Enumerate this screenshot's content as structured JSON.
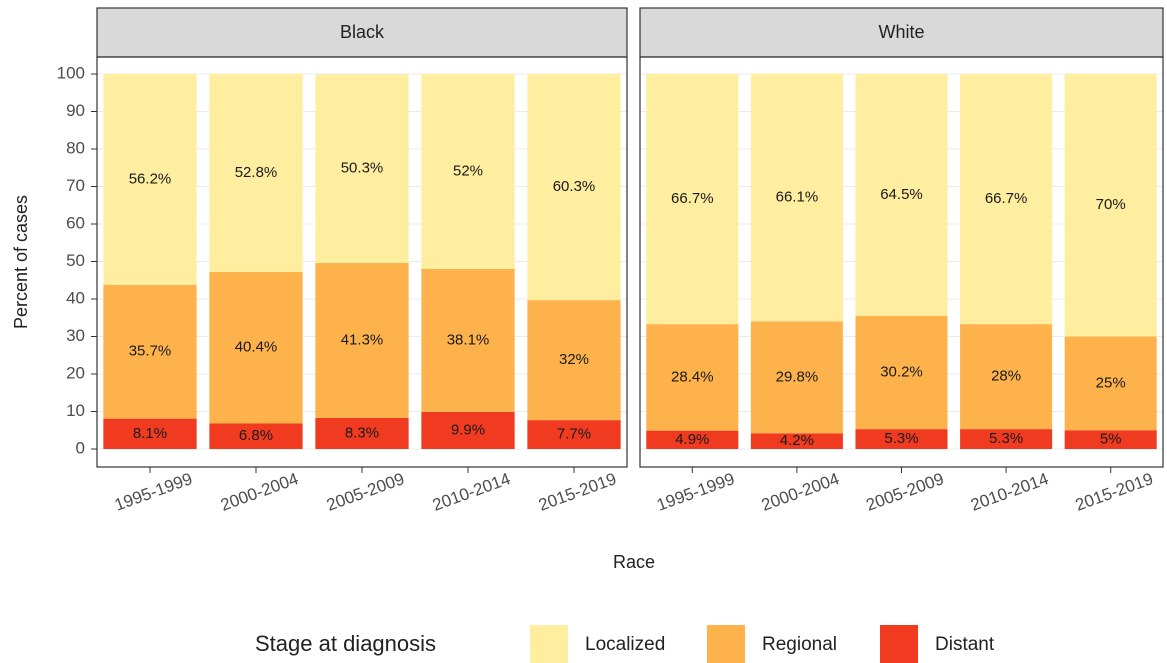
{
  "chart_data": {
    "type": "bar",
    "stacked": true,
    "y_label": "Percent of cases",
    "x_label": "Race",
    "legend_title": "Stage at diagnosis",
    "categories": [
      "1995-1999",
      "2000-2004",
      "2005-2009",
      "2010-2014",
      "2015-2019"
    ],
    "ylim": [
      0,
      100
    ],
    "yticks": [
      0,
      10,
      20,
      30,
      40,
      50,
      60,
      70,
      80,
      90,
      100
    ],
    "grid": true,
    "series": [
      {
        "name": "Localized",
        "color": "#ffeda0"
      },
      {
        "name": "Regional",
        "color": "#feb24c"
      },
      {
        "name": "Distant",
        "color": "#f03b20"
      }
    ],
    "facets": [
      {
        "title": "Black",
        "series": [
          {
            "values": [
              56.2,
              52.8,
              50.3,
              52,
              60.3
            ],
            "value_labels": [
              "56.2%",
              "52.8%",
              "50.3%",
              "52%",
              "60.3%"
            ]
          },
          {
            "values": [
              35.7,
              40.4,
              41.3,
              38.1,
              32
            ],
            "value_labels": [
              "35.7%",
              "40.4%",
              "41.3%",
              "38.1%",
              "32%"
            ]
          },
          {
            "values": [
              8.1,
              6.8,
              8.3,
              9.9,
              7.7
            ],
            "value_labels": [
              "8.1%",
              "6.8%",
              "8.3%",
              "9.9%",
              "7.7%"
            ]
          }
        ]
      },
      {
        "title": "White",
        "series": [
          {
            "values": [
              66.7,
              66.1,
              64.5,
              66.7,
              70
            ],
            "value_labels": [
              "66.7%",
              "66.1%",
              "64.5%",
              "66.7%",
              "70%"
            ]
          },
          {
            "values": [
              28.4,
              29.8,
              30.2,
              28,
              25
            ],
            "value_labels": [
              "28.4%",
              "29.8%",
              "30.2%",
              "28%",
              "25%"
            ]
          },
          {
            "values": [
              4.9,
              4.2,
              5.3,
              5.3,
              5
            ],
            "value_labels": [
              "4.9%",
              "4.2%",
              "5.3%",
              "5.3%",
              "5%"
            ]
          }
        ]
      }
    ]
  }
}
